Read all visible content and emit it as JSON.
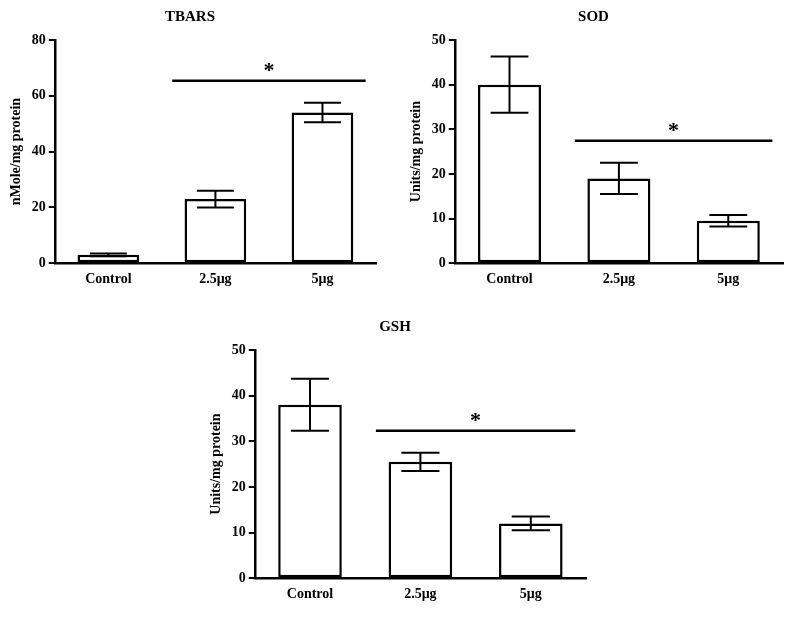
{
  "chart_data": [
    {
      "type": "bar",
      "title": "TBARS",
      "categories": [
        "Control",
        "2.5μg",
        "5μg"
      ],
      "values": [
        3,
        23,
        54
      ],
      "errors": [
        0.5,
        3,
        3.5
      ],
      "color": "#ffffff",
      "y_label": "nMole/mg protein",
      "ylim": [
        0,
        80
      ],
      "yticks": [
        0,
        20,
        40,
        60,
        80
      ],
      "grid": false,
      "annotations": [
        {
          "text": "*",
          "between": [
            "2.5μg",
            "5μg"
          ]
        }
      ]
    },
    {
      "type": "bar",
      "title": "SOD",
      "categories": [
        "Control",
        "2.5μg",
        "5μg"
      ],
      "values": [
        40,
        19,
        9.5
      ],
      "errors": [
        6.3,
        3.5,
        1.3
      ],
      "color": "#ffffff",
      "y_label": "Units/mg protein",
      "ylim": [
        0,
        50
      ],
      "yticks": [
        0,
        10,
        20,
        30,
        40,
        50
      ],
      "grid": false,
      "annotations": [
        {
          "text": "*",
          "between": [
            "2.5μg",
            "5μg"
          ]
        }
      ]
    },
    {
      "type": "bar",
      "title": "GSH",
      "categories": [
        "Control",
        "2.5μg",
        "5μg"
      ],
      "values": [
        38,
        25.5,
        12
      ],
      "errors": [
        5.7,
        2,
        1.5
      ],
      "color": "#ffffff",
      "y_label": "Units/mg protein",
      "ylim": [
        0,
        50
      ],
      "yticks": [
        0,
        10,
        20,
        30,
        40,
        50
      ],
      "grid": false,
      "annotations": [
        {
          "text": "*",
          "between": [
            "2.5μg",
            "5μg"
          ]
        }
      ]
    }
  ]
}
